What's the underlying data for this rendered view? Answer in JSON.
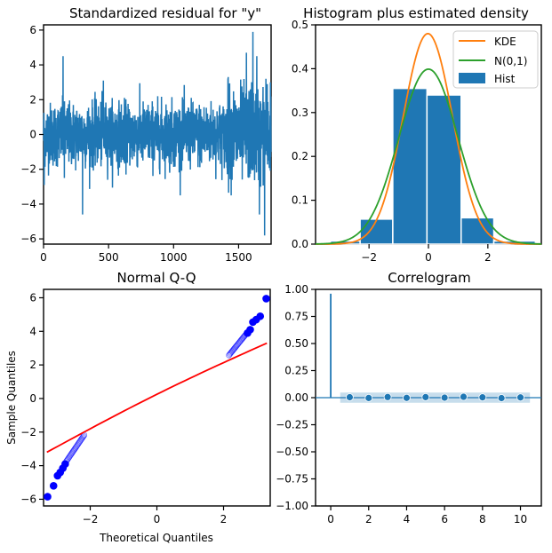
{
  "chart_data": [
    {
      "type": "line",
      "title": "Standardized residual for \"y\"",
      "xlim": [
        0,
        1750
      ],
      "ylim": [
        -6.3,
        6.3
      ],
      "xticks": [
        0,
        500,
        1000,
        1500
      ],
      "yticks": [
        -6,
        -4,
        -2,
        0,
        2,
        4,
        6
      ],
      "series": [
        {
          "color": "#1f77b4",
          "n": 1750,
          "spikes": [
            {
              "x": 5,
              "y": -2.9
            },
            {
              "x": 150,
              "y": 4.5
            },
            {
              "x": 160,
              "y": -2.5
            },
            {
              "x": 300,
              "y": -4.6
            },
            {
              "x": 460,
              "y": 3.1
            },
            {
              "x": 970,
              "y": -2.2
            },
            {
              "x": 1420,
              "y": 3.3
            },
            {
              "x": 1560,
              "y": 4.7
            },
            {
              "x": 1610,
              "y": 5.9
            },
            {
              "x": 1640,
              "y": 4.5
            },
            {
              "x": 1660,
              "y": -4.6
            },
            {
              "x": 1700,
              "y": -5.8
            },
            {
              "x": 1710,
              "y": 3.2
            },
            {
              "x": 1745,
              "y": 3.0
            }
          ]
        }
      ]
    },
    {
      "type": "histogram",
      "title": "Histogram plus estimated density",
      "xlim": [
        -3.8,
        3.8
      ],
      "ylim": [
        0,
        0.5
      ],
      "xticks": [
        -2,
        0,
        2
      ],
      "yticks": [
        0.0,
        0.1,
        0.2,
        0.3,
        0.4,
        0.5
      ],
      "legend_position": "top-right",
      "bins": [
        {
          "x0": -3.3,
          "x1": -2.3,
          "height": 0.007
        },
        {
          "x0": -2.3,
          "x1": -1.2,
          "height": 0.057
        },
        {
          "x0": -1.2,
          "x1": -0.05,
          "height": 0.355
        },
        {
          "x0": -0.05,
          "x1": 1.1,
          "height": 0.34
        },
        {
          "x0": 1.1,
          "x1": 2.2,
          "height": 0.06
        },
        {
          "x0": 2.2,
          "x1": 3.6,
          "height": 0.007
        }
      ],
      "series": [
        {
          "name": "KDE",
          "color": "#ff7f0e",
          "peak": 0.48,
          "center": -0.02,
          "sd": 0.83
        },
        {
          "name": "N(0,1)",
          "color": "#2ca02c",
          "peak": 0.399,
          "center": 0,
          "sd": 1
        },
        {
          "name": "Hist",
          "color": "#1f77b4"
        }
      ]
    },
    {
      "type": "scatter",
      "title": "Normal Q-Q",
      "xlabel": "Theoretical Quantiles",
      "ylabel": "Sample Quantiles",
      "xlim": [
        -3.4,
        3.4
      ],
      "ylim": [
        -6.4,
        6.5
      ],
      "xticks": [
        -2,
        0,
        2
      ],
      "yticks": [
        -6,
        -4,
        -2,
        0,
        2,
        4,
        6
      ],
      "n": 1750,
      "marker_color": "#0000ff",
      "reference_line": {
        "color": "#ff0000",
        "x": [
          -3.3,
          3.3
        ],
        "y": [
          -3.2,
          3.3
        ]
      },
      "extreme_points": [
        {
          "x": -3.28,
          "y": -5.85
        },
        {
          "x": -3.1,
          "y": -5.2
        },
        {
          "x": -2.98,
          "y": -4.6
        },
        {
          "x": -2.9,
          "y": -4.4
        },
        {
          "x": -2.82,
          "y": -4.15
        },
        {
          "x": -2.75,
          "y": -3.9
        },
        {
          "x": 3.28,
          "y": 5.95
        },
        {
          "x": 3.1,
          "y": 4.9
        },
        {
          "x": 2.98,
          "y": 4.7
        },
        {
          "x": 2.88,
          "y": 4.55
        },
        {
          "x": 2.8,
          "y": 4.1
        },
        {
          "x": 2.72,
          "y": 3.9
        }
      ]
    },
    {
      "type": "stem",
      "title": "Correlogram",
      "xlim": [
        -0.8,
        11.1
      ],
      "ylim": [
        -1,
        1
      ],
      "xticks": [
        0,
        2,
        4,
        6,
        8,
        10
      ],
      "yticks": [
        -1.0,
        -0.75,
        -0.5,
        -0.25,
        0.0,
        0.25,
        0.5,
        0.75,
        1.0
      ],
      "lags": [
        1,
        2,
        3,
        4,
        5,
        6,
        7,
        8,
        9,
        10
      ],
      "acf": [
        0.004,
        -0.003,
        0.006,
        -0.002,
        0.005,
        0.0,
        0.008,
        0.003,
        -0.004,
        0.002
      ],
      "lag0_value": 0.96,
      "confidence_band": 0.047,
      "color": "#1f77b4"
    }
  ]
}
